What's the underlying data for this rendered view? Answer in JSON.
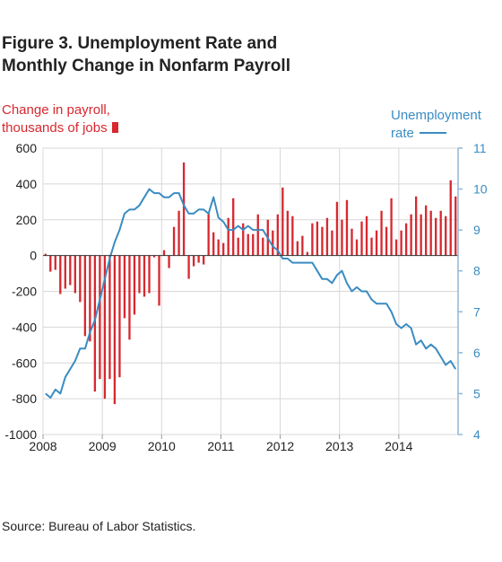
{
  "title_lines": [
    "Figure 3. Unemployment Rate and",
    "Monthly Change in Nonfarm Payroll"
  ],
  "left_axis_label_lines": [
    "Change in payroll,",
    "thousands of jobs"
  ],
  "right_axis_label_lines": [
    "Unemployment",
    "rate"
  ],
  "source": "Source: Bureau of Labor Statistics.",
  "colors": {
    "bars": "#d7282f",
    "line": "#3a8cc2",
    "axis": "#8fb8d8",
    "grid": "#d8d8d8",
    "text": "#222222"
  },
  "chart_data": {
    "type": "bar+line",
    "x_start": "2008-01",
    "x_end": "2014-12",
    "x_tick_labels": [
      "2008",
      "2009",
      "2010",
      "2011",
      "2012",
      "2013",
      "2014"
    ],
    "y_left_ticks": [
      "600",
      "400",
      "200",
      "0",
      "-200",
      "-400",
      "-600",
      "-800",
      "-1000"
    ],
    "y_left_lim": [
      -1000,
      600
    ],
    "y_right_ticks": [
      "11",
      "10",
      "9",
      "8",
      "7",
      "6",
      "5",
      "4"
    ],
    "y_right_lim": [
      4,
      11
    ],
    "grid": true,
    "bars": {
      "axis": "left",
      "values": [
        10,
        -90,
        -80,
        -215,
        -185,
        -165,
        -210,
        -260,
        -450,
        -480,
        -760,
        -690,
        -800,
        -690,
        -830,
        -680,
        -350,
        -470,
        -330,
        -210,
        -230,
        -210,
        -10,
        -280,
        30,
        -70,
        160,
        250,
        520,
        -130,
        -60,
        -40,
        -50,
        240,
        130,
        90,
        70,
        210,
        320,
        100,
        180,
        120,
        120,
        230,
        100,
        200,
        140,
        230,
        380,
        250,
        220,
        80,
        110,
        20,
        180,
        190,
        160,
        210,
        140,
        300,
        200,
        310,
        150,
        90,
        190,
        220,
        100,
        140,
        250,
        160,
        320,
        90,
        140,
        180,
        230,
        330,
        230,
        280,
        250,
        210,
        250,
        220,
        420,
        330
      ]
    },
    "line": {
      "axis": "right",
      "values": [
        5.0,
        4.9,
        5.1,
        5.0,
        5.4,
        5.6,
        5.8,
        6.1,
        6.1,
        6.5,
        6.8,
        7.3,
        7.8,
        8.3,
        8.7,
        9.0,
        9.4,
        9.5,
        9.5,
        9.6,
        9.8,
        10.0,
        9.9,
        9.9,
        9.8,
        9.8,
        9.9,
        9.9,
        9.6,
        9.4,
        9.4,
        9.5,
        9.5,
        9.4,
        9.8,
        9.3,
        9.2,
        9.0,
        9.0,
        9.1,
        9.0,
        9.1,
        9.0,
        9.0,
        9.0,
        8.8,
        8.6,
        8.5,
        8.3,
        8.3,
        8.2,
        8.2,
        8.2,
        8.2,
        8.2,
        8.0,
        7.8,
        7.8,
        7.7,
        7.9,
        8.0,
        7.7,
        7.5,
        7.6,
        7.5,
        7.5,
        7.3,
        7.2,
        7.2,
        7.2,
        7.0,
        6.7,
        6.6,
        6.7,
        6.6,
        6.2,
        6.3,
        6.1,
        6.2,
        6.1,
        5.9,
        5.7,
        5.8,
        5.6
      ]
    }
  }
}
